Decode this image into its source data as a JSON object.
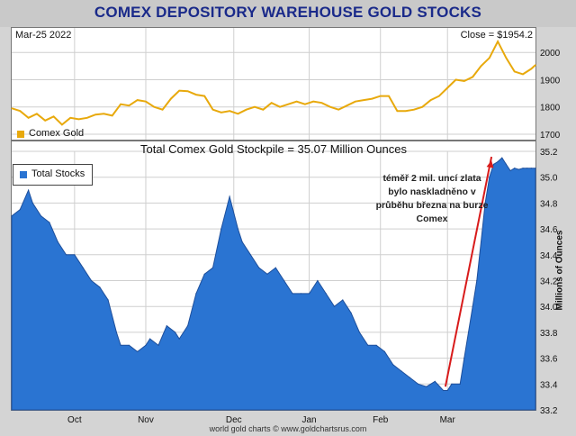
{
  "title": "COMEX DEPOSITORY WAREHOUSE GOLD STOCKS",
  "gold_panel": {
    "date_label": "Mar-25  2022",
    "close_label": "Close = $1954.2",
    "legend": "Comex Gold"
  },
  "stock_panel": {
    "heading": "Total Comex Gold Stockpile = 35.07 Million Ounces",
    "legend": "Total Stocks",
    "annotation": [
      "téměř 2 mil. uncí zlata",
      "bylo naskladněno v",
      "průběhu března na burze",
      "Comex"
    ]
  },
  "footer": "world gold charts © www.goldchartsrus.com",
  "colors": {
    "gold": "#e8a90c",
    "stocks_fill": "#2a74d2",
    "stocks_line": "#1d4f9c",
    "arrow": "#d81b1b",
    "title": "#1a2a8a"
  },
  "chart_data": [
    {
      "type": "line",
      "title": "Comex Gold",
      "ylim": [
        1680,
        2090
      ],
      "y_ticks": [
        "1700",
        "1800",
        "1900",
        "2000"
      ],
      "x_index_range": [
        0,
        125
      ],
      "series": [
        {
          "name": "Comex Gold",
          "x": [
            0,
            2,
            4,
            6,
            8,
            10,
            12,
            14,
            16,
            18,
            20,
            22,
            24,
            26,
            28,
            30,
            32,
            34,
            36,
            38,
            40,
            42,
            44,
            46,
            48,
            50,
            52,
            54,
            56,
            58,
            60,
            62,
            64,
            66,
            68,
            70,
            72,
            74,
            76,
            78,
            80,
            82,
            84,
            86,
            88,
            90,
            92,
            94,
            96,
            98,
            100,
            102,
            104,
            106,
            108,
            110,
            112,
            114,
            116,
            118,
            120,
            122,
            124,
            125
          ],
          "values": [
            1795,
            1785,
            1760,
            1775,
            1750,
            1765,
            1735,
            1760,
            1755,
            1760,
            1772,
            1775,
            1768,
            1810,
            1805,
            1825,
            1820,
            1800,
            1790,
            1830,
            1860,
            1858,
            1845,
            1840,
            1790,
            1780,
            1785,
            1775,
            1790,
            1800,
            1790,
            1815,
            1800,
            1810,
            1820,
            1810,
            1820,
            1815,
            1800,
            1790,
            1805,
            1820,
            1825,
            1830,
            1840,
            1840,
            1785,
            1785,
            1790,
            1800,
            1825,
            1840,
            1870,
            1900,
            1895,
            1910,
            1950,
            1980,
            2040,
            1980,
            1930,
            1920,
            1940,
            1954
          ]
        }
      ]
    },
    {
      "type": "area",
      "title": "Total Comex Gold Stockpile = 35.07 Million Ounces",
      "ylabel": "Millions of Ounces",
      "ylim": [
        33.2,
        35.2
      ],
      "y_ticks": [
        "33.2",
        "33.4",
        "33.6",
        "33.8",
        "34.0",
        "34.2",
        "34.4",
        "34.6",
        "34.8",
        "35.0",
        "35.2"
      ],
      "x_ticks": [
        {
          "label": "Oct",
          "x": 15
        },
        {
          "label": "Nov",
          "x": 32
        },
        {
          "label": "Dec",
          "x": 53
        },
        {
          "label": "Jan",
          "x": 71
        },
        {
          "label": "Feb",
          "x": 88
        },
        {
          "label": "Mar",
          "x": 104
        }
      ],
      "series": [
        {
          "name": "Total Stocks",
          "x": [
            0,
            2,
            4,
            5,
            7,
            9,
            11,
            13,
            15,
            17,
            19,
            21,
            23,
            25,
            26,
            28,
            30,
            32,
            33,
            35,
            37,
            39,
            40,
            42,
            44,
            46,
            48,
            50,
            52,
            54,
            55,
            57,
            59,
            61,
            63,
            65,
            67,
            69,
            71,
            73,
            75,
            77,
            79,
            81,
            83,
            85,
            87,
            89,
            91,
            93,
            95,
            97,
            99,
            101,
            103,
            104,
            105,
            107,
            108,
            109,
            110,
            111,
            112,
            113,
            114,
            115,
            116,
            117,
            118,
            119,
            120,
            121,
            122,
            123,
            124,
            125
          ],
          "values": [
            34.7,
            34.75,
            34.9,
            34.8,
            34.7,
            34.65,
            34.5,
            34.4,
            34.4,
            34.3,
            34.2,
            34.15,
            34.05,
            33.8,
            33.7,
            33.7,
            33.65,
            33.7,
            33.75,
            33.7,
            33.85,
            33.8,
            33.75,
            33.85,
            34.1,
            34.25,
            34.3,
            34.6,
            34.85,
            34.6,
            34.5,
            34.4,
            34.3,
            34.25,
            34.3,
            34.2,
            34.1,
            34.1,
            34.1,
            34.2,
            34.1,
            34.0,
            34.05,
            33.95,
            33.8,
            33.7,
            33.7,
            33.65,
            33.55,
            33.5,
            33.45,
            33.4,
            33.38,
            33.42,
            33.35,
            33.35,
            33.4,
            33.4,
            33.6,
            33.8,
            34.0,
            34.2,
            34.5,
            34.8,
            35.0,
            35.1,
            35.12,
            35.15,
            35.1,
            35.05,
            35.07,
            35.06,
            35.07,
            35.07,
            35.07,
            35.07
          ]
        }
      ],
      "annotation_arrow": {
        "from": [
          103.5,
          33.38
        ],
        "to": [
          114.5,
          35.13
        ]
      }
    }
  ]
}
